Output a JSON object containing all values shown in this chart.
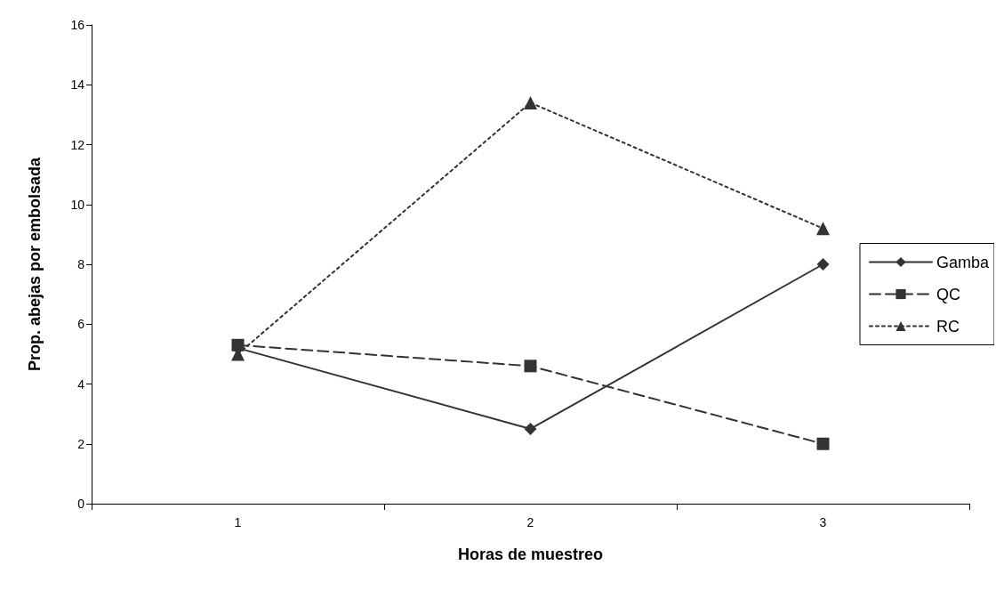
{
  "chart_data": {
    "type": "line",
    "xlabel": "Horas de muestreo",
    "ylabel": "Prop. abejas por embolsada",
    "categories": [
      "1",
      "2",
      "3"
    ],
    "series": [
      {
        "name": "Gamba",
        "color": "#333333",
        "values": [
          5.2,
          2.5,
          8.0
        ],
        "marker": "diamond",
        "line_style": "solid"
      },
      {
        "name": "QC",
        "color": "#333333",
        "values": [
          5.3,
          4.6,
          2.0
        ],
        "marker": "square",
        "line_style": "dashed"
      },
      {
        "name": "RC",
        "color": "#333333",
        "values": [
          5.0,
          13.4,
          9.2
        ],
        "marker": "triangle",
        "line_style": "dotted"
      }
    ],
    "ylim": [
      0,
      16
    ],
    "yticks": [
      0,
      2,
      4,
      6,
      8,
      10,
      12,
      14,
      16
    ],
    "grid": false,
    "legend": "right"
  }
}
